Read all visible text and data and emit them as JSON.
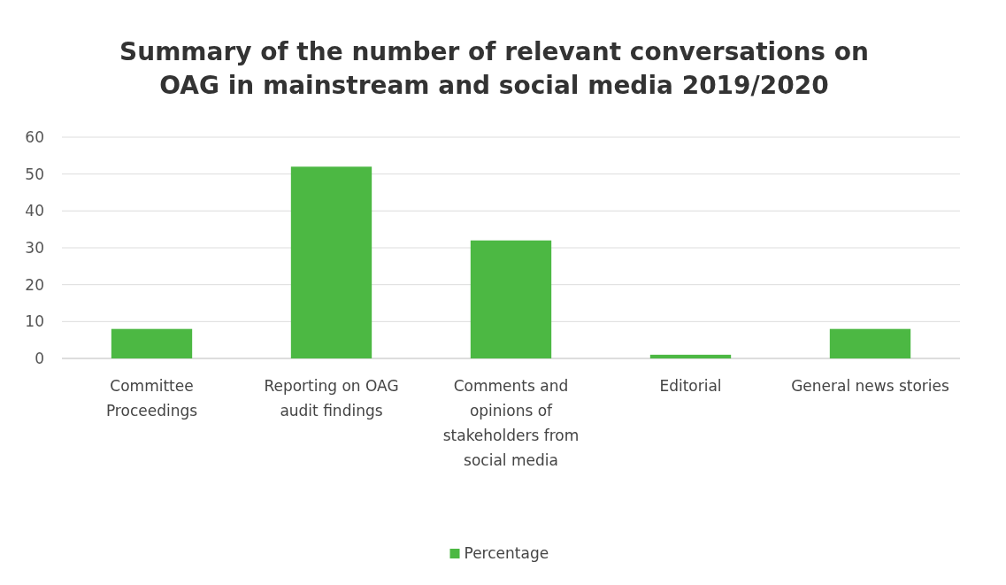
{
  "chart_data": {
    "type": "bar",
    "title": "Summary of the number of relevant conversations on OAG in mainstream and social media 2019/2020",
    "categories": [
      "Committee Proceedings",
      "Reporting on OAG audit findings",
      "Comments and opinions of stakeholders from social media",
      "Editorial",
      "General news stories"
    ],
    "series": [
      {
        "name": "Percentage",
        "color": "#4cb843",
        "values": [
          8,
          52,
          32,
          1,
          8
        ]
      }
    ],
    "ylim": [
      0,
      60
    ],
    "yticks": [
      0,
      10,
      20,
      30,
      40,
      50,
      60
    ],
    "grid": "y",
    "legend": "bottom"
  }
}
